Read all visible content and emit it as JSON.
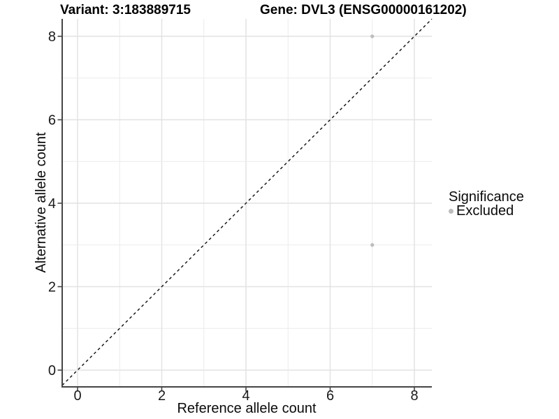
{
  "header": {
    "variant_title": "Variant: 3:183889715",
    "gene_title": "Gene: DVL3 (ENSG00000161202)"
  },
  "legend": {
    "title": "Significance",
    "items": [
      {
        "label": "Excluded",
        "color": "#bcbcbc"
      }
    ]
  },
  "chart_data": {
    "type": "scatter",
    "title": "Variant: 3:183889715   Gene: DVL3 (ENSG00000161202)",
    "xlabel": "Reference allele count",
    "ylabel": "Alternative allele count",
    "xlim": [
      -0.425,
      8.425
    ],
    "ylim": [
      -0.425,
      8.425
    ],
    "x_ticks": [
      0,
      2,
      4,
      6,
      8
    ],
    "y_ticks": [
      0,
      2,
      4,
      6,
      8
    ],
    "grid": true,
    "grid_lines_at": [
      0,
      1,
      2,
      3,
      4,
      5,
      6,
      7,
      8
    ],
    "legend_position": "right",
    "series": [
      {
        "name": "Excluded",
        "color": "#bcbcbc",
        "points": [
          {
            "x": 7,
            "y": 8
          },
          {
            "x": 7,
            "y": 3
          }
        ]
      }
    ],
    "reference_line": {
      "kind": "identity y=x",
      "style": "dashed",
      "color": "#0d0d0d"
    }
  },
  "style": {
    "background": "#ffffff",
    "axis_color": "#454545",
    "grid_major_color": "#e2e2e2",
    "grid_minor_color": "#ebebeb",
    "tick_label_color": "#1a1a1a",
    "point_color": "#bcbcbc"
  }
}
